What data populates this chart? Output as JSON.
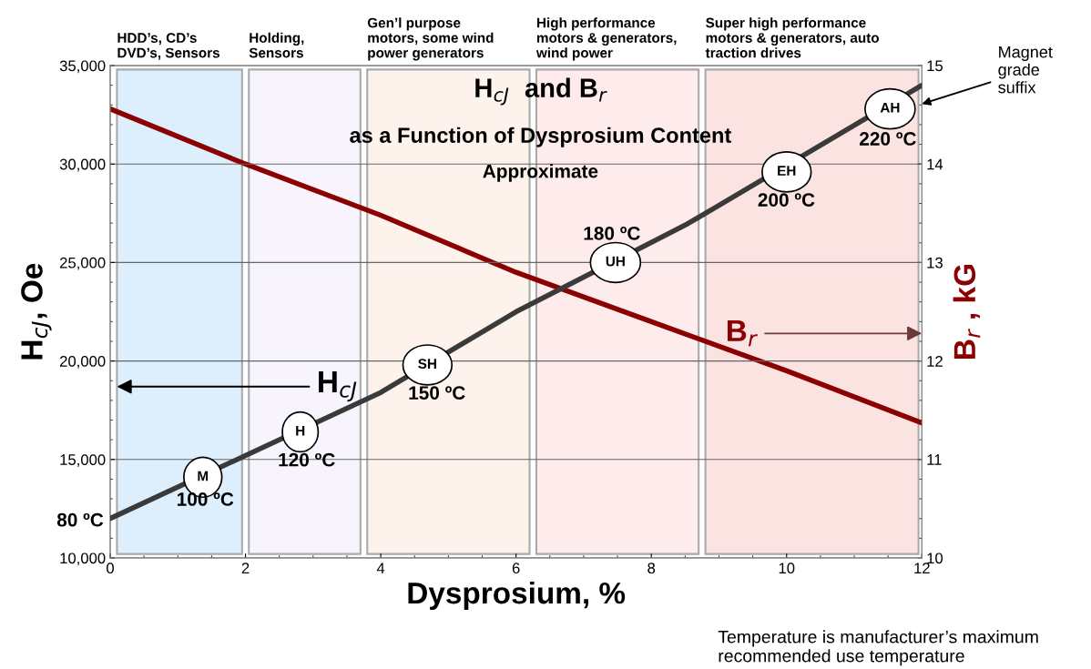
{
  "chart_data": {
    "type": "line",
    "title": "H$_{cJ}$  and B$_{r}$",
    "subtitle": "as a Function of Dysprosium Content",
    "xlabel": "Dysprosium, %",
    "ylabel": "H$_{cJ}$, Oe",
    "y2label": "B$_{r}$ , kG",
    "x": [
      0,
      2,
      4,
      6,
      8,
      10,
      12
    ],
    "series": [
      {
        "color": "#3a3a3a",
        "x": [
          0,
          2,
          4,
          6,
          8.5,
          9,
          12
        ],
        "values": [
          12000,
          15200,
          18400,
          22500,
          26900,
          27900,
          34000
        ]
      },
      {
        "color": "#8b0000",
        "axis": "y2",
        "values": [
          14.56,
          14.0,
          13.48,
          12.9,
          12.4,
          11.9,
          11.37
        ]
      }
    ],
    "xlim": [
      0,
      12
    ],
    "xticks": [
      0,
      2,
      4,
      6,
      8,
      10,
      12
    ],
    "ylim": [
      10000,
      35000
    ],
    "yticks": [
      {
        "value": 10000,
        "label": "10,000"
      },
      {
        "value": 15000,
        "label": "15,000"
      },
      {
        "value": 20000,
        "label": "20,000"
      },
      {
        "value": 25000,
        "label": "25,000"
      },
      {
        "value": 30000,
        "label": "30,000"
      },
      {
        "value": 35000,
        "label": "35,000"
      }
    ],
    "y2lim": [
      10,
      15
    ],
    "y2ticks": [
      10,
      11,
      12,
      13,
      14,
      15
    ],
    "grid": "y",
    "marker": "none",
    "line_style": "solid",
    "bands": [
      {
        "axis": "x",
        "from": 0.1,
        "to": 1.95,
        "label": "HDD’s, CD’s\nDVD’s, Sensors",
        "color": "#ddeefc"
      },
      {
        "axis": "x",
        "from": 2.05,
        "to": 3.7,
        "label": "Holding,\nSensors",
        "color": "#f8f4fd"
      },
      {
        "axis": "x",
        "from": 3.8,
        "to": 6.2,
        "label": "Gen’l purpose\nmotors, some wind\npower generators",
        "color": "#fdf3ec"
      },
      {
        "axis": "x",
        "from": 6.3,
        "to": 8.7,
        "label": "High performance\nmotors & generators,\nwind power",
        "color": "#fdeceb"
      },
      {
        "axis": "x",
        "from": 8.8,
        "to": 11.95,
        "label": "Super high performance\nmotors & generators, auto\ntraction drives",
        "color": "#fbe3e1"
      }
    ],
    "annotations": [
      "Approximate",
      "Temperature is manufacturer’s maximum\nrecommended use temperature",
      {
        "text": "M",
        "x": 1.37,
        "y": 14100
      },
      {
        "text": "H",
        "x": 2.81,
        "y": 16400
      },
      {
        "text": "SH",
        "x": 4.69,
        "y": 19800
      },
      {
        "text": "UH",
        "x": 7.47,
        "y": 25000
      },
      {
        "text": "EH",
        "x": 10.0,
        "y": 29600
      },
      {
        "text": "AH",
        "x": 11.53,
        "y": 32800
      },
      "80 ºC",
      "100 ºC",
      "120 ºC",
      "150 ºC",
      "180 ºC",
      "200 ºC",
      "220 ºC",
      {
        "text": "H$_{cJ}$",
        "x": 0.1,
        "y": 18700
      },
      {
        "text": "B$_{r}$",
        "x": 12,
        "y": 21400
      },
      {
        "text": "Magnet\ngrade\nsuffix",
        "x": 12,
        "y": 33050
      }
    ]
  }
}
